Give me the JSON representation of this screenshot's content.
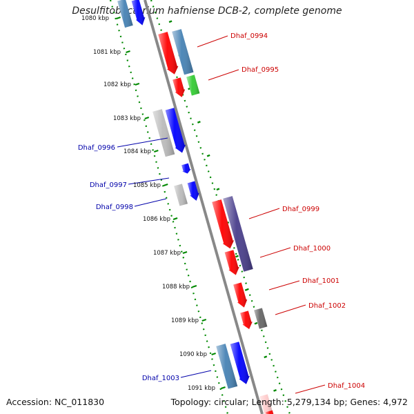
{
  "title": "Desulfitobacterium hafniense DCB-2, complete genome",
  "accession": "Accession: NC_011830",
  "stats": "Topology: circular; Length: 5,279,134 bp; Genes: 4,972",
  "ticks": [
    "1080 kbp",
    "1081 kbp",
    "1082 kbp",
    "1083 kbp",
    "1084 kbp",
    "1085 kbp",
    "1086 kbp",
    "1087 kbp",
    "1088 kbp",
    "1089 kbp",
    "1090 kbp",
    "1091 kbp"
  ],
  "colors": {
    "red": "#ff0000",
    "blue": "#0000ff",
    "steelblue": "#4682b4",
    "green": "#33cc33",
    "gray": "#bbbbbb",
    "darkgray": "#666666",
    "slateblue": "#483d8b",
    "pink": "#ffcccc",
    "dots": "#008800",
    "backbone": "#888888",
    "red_label": "#cc0000",
    "blue_label": "#0000aa"
  },
  "labels": {
    "right": [
      "Dhaf_0994",
      "Dhaf_0995",
      "Dhaf_0999",
      "Dhaf_1000",
      "Dhaf_1001",
      "Dhaf_1002",
      "Dhaf_1004"
    ],
    "left": [
      "Dhaf_0996",
      "Dhaf_0997",
      "Dhaf_0998",
      "Dhaf_1003"
    ]
  }
}
